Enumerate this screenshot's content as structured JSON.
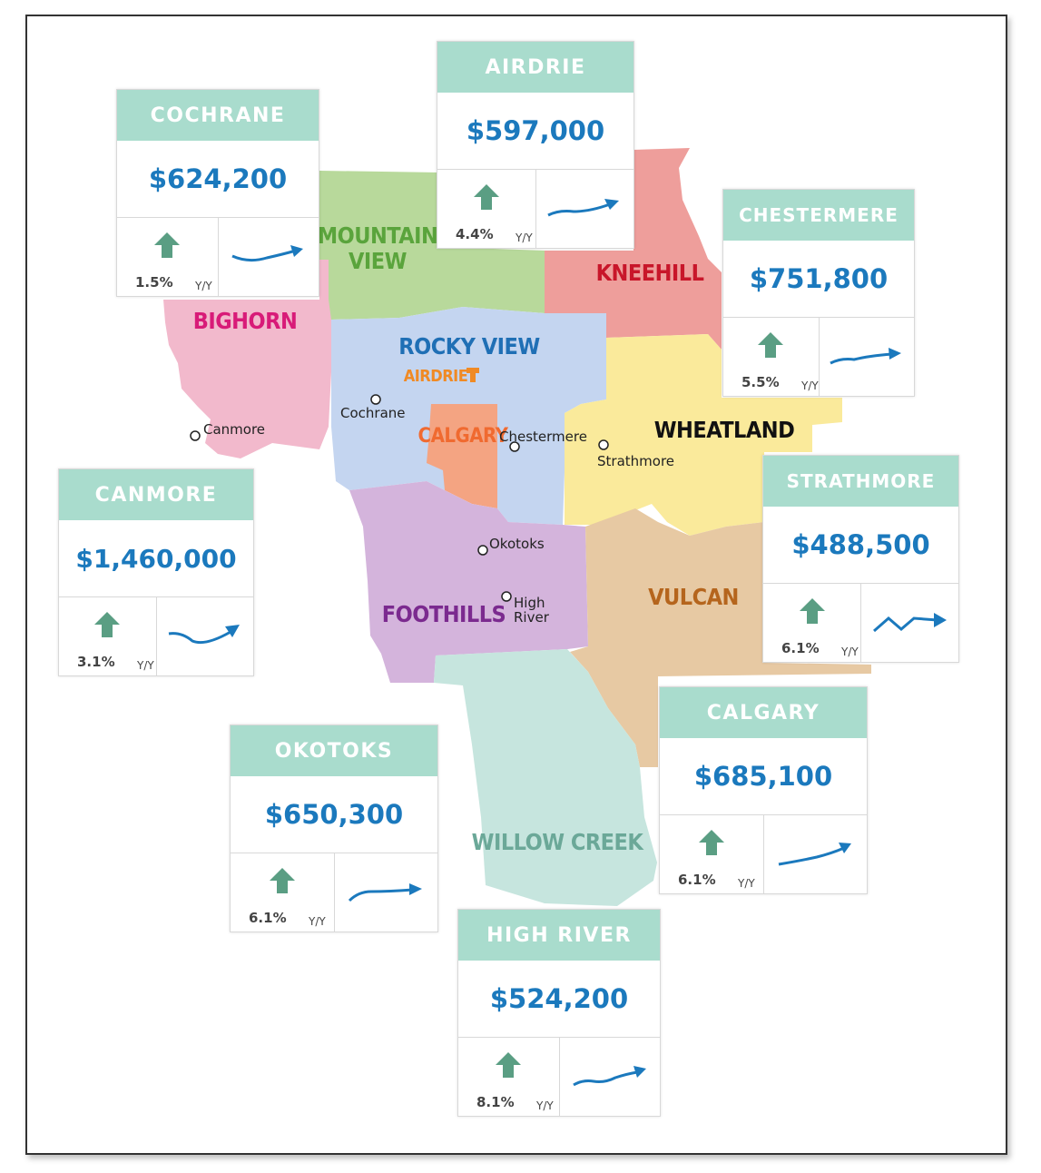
{
  "regions": {
    "mountain_view": {
      "label_line1": "MOUNTAIN",
      "label_line2": "VIEW",
      "color": "#b8d99b",
      "text_color": "#5aa43c"
    },
    "bighorn": {
      "label": "BIGHORN",
      "color": "#f2b9cc",
      "text_color": "#d81b78"
    },
    "rocky_view": {
      "label": "ROCKY VIEW",
      "color": "#c4d5f0",
      "text_color": "#1f6fb5"
    },
    "airdrie_inner": {
      "label": "AIRDRIE",
      "text_color": "#f08a24"
    },
    "calgary_inner": {
      "label": "CALGARY",
      "color": "#f4a482",
      "text_color": "#f06a30"
    },
    "kneehill": {
      "label": "KNEEHILL",
      "color": "#ee9e9b",
      "text_color": "#c8162a"
    },
    "wheatland": {
      "label": "WHEATLAND",
      "color": "#faea9b",
      "text_color": "#111111"
    },
    "foothills": {
      "label": "FOOTHILLS",
      "color": "#d4b4dc",
      "text_color": "#7b2a8f"
    },
    "vulcan": {
      "label": "VULCAN",
      "color": "#e7c9a3",
      "text_color": "#b5651d"
    },
    "willow_creek": {
      "label": "WILLOW CREEK",
      "color": "#c6e5de",
      "text_color": "#6ba898"
    }
  },
  "towns": {
    "cochrane": "Cochrane",
    "canmore": "Canmore",
    "chestermere": "Chestermere",
    "strathmore": "Strathmore",
    "okotoks": "Okotoks",
    "high_river_line1": "High",
    "high_river_line2": "River"
  },
  "cards": {
    "cochrane": {
      "name": "COCHRANE",
      "price": "$624,200",
      "change": "1.5%",
      "period": "Y/Y"
    },
    "airdrie": {
      "name": "AIRDRIE",
      "price": "$597,000",
      "change": "4.4%",
      "period": "Y/Y"
    },
    "chestermere": {
      "name": "CHESTERMERE",
      "price": "$751,800",
      "change": "5.5%",
      "period": "Y/Y"
    },
    "canmore": {
      "name": "CANMORE",
      "price": "$1,460,000",
      "change": "3.1%",
      "period": "Y/Y"
    },
    "strathmore": {
      "name": "STRATHMORE",
      "price": "$488,500",
      "change": "6.1%",
      "period": "Y/Y"
    },
    "calgary": {
      "name": "CALGARY",
      "price": "$685,100",
      "change": "6.1%",
      "period": "Y/Y"
    },
    "okotoks": {
      "name": "OKOTOKS",
      "price": "$650,300",
      "change": "6.1%",
      "period": "Y/Y"
    },
    "high_river": {
      "name": "HIGH RIVER",
      "price": "$524,200",
      "change": "8.1%",
      "period": "Y/Y"
    }
  },
  "icons": {
    "up": "up-arrow-icon",
    "trend": "trend-line-icon"
  },
  "colors": {
    "card_header": "#a9dccd",
    "price": "#1b79bd",
    "arrow": "#5a9e83",
    "trend": "#1b79bd"
  }
}
